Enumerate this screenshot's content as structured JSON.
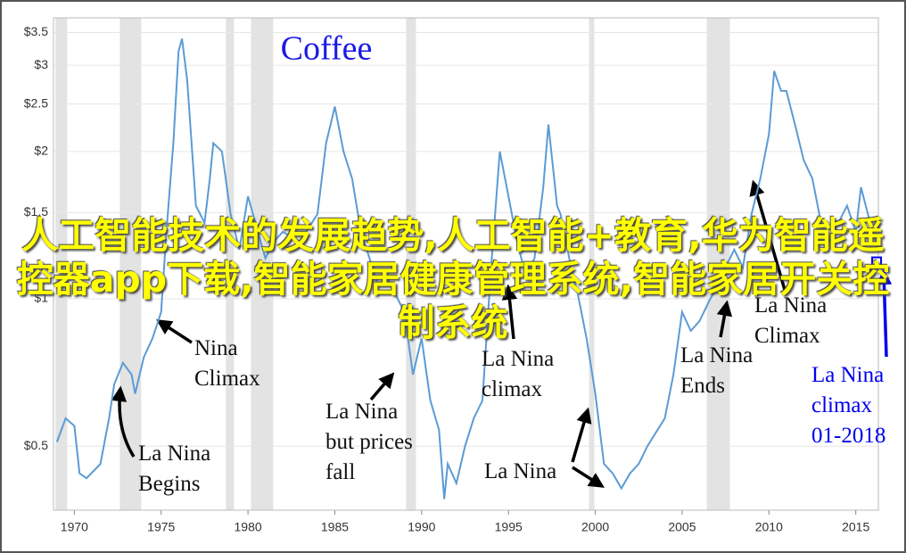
{
  "chart_data": {
    "type": "line",
    "title": "Coffee",
    "log_scale": true,
    "color": "#5b9bd5",
    "shade_color": "#e3e3e3",
    "xlim": [
      1968.8,
      2016.3
    ],
    "xticks": [
      1970,
      1975,
      1980,
      1985,
      1990,
      1995,
      2000,
      2005,
      2010,
      2015
    ],
    "ylim": [
      0.37,
      3.75
    ],
    "yticks": [
      {
        "value": 0.5,
        "label": "$0.5"
      },
      {
        "value": 1,
        "label": "$1"
      },
      {
        "value": 1.5,
        "label": "$1.5"
      },
      {
        "value": 2,
        "label": "$2"
      },
      {
        "value": 2.5,
        "label": "$2.5"
      },
      {
        "value": 3,
        "label": "$3"
      },
      {
        "value": 3.5,
        "label": "$3.5"
      }
    ],
    "shaded_periods": [
      [
        1968.92,
        1969.59
      ],
      [
        1972.62,
        1973.85
      ],
      [
        1978.73,
        1979.19
      ],
      [
        1980.17,
        1981.45
      ],
      [
        1989.11,
        1989.67
      ],
      [
        1999.64,
        1999.94
      ],
      [
        2006.42,
        2007.75
      ]
    ],
    "x": [
      1969.0,
      1969.5,
      1970.0,
      1970.3,
      1970.7,
      1971.5,
      1972.0,
      1972.3,
      1972.8,
      1973.3,
      1973.5,
      1974.0,
      1974.5,
      1975.0,
      1975.3,
      1975.7,
      1976.0,
      1976.2,
      1976.5,
      1977.0,
      1977.5,
      1977.8,
      1978.0,
      1978.5,
      1979.0,
      1979.5,
      1980.0,
      1980.5,
      1981.0,
      1981.5,
      1982.0,
      1983.0,
      1984.0,
      1984.5,
      1985.0,
      1985.5,
      1986.0,
      1986.5,
      1987.0,
      1987.5,
      1988.0,
      1988.5,
      1989.0,
      1989.5,
      1990.0,
      1990.5,
      1991.0,
      1991.3,
      1991.5,
      1992.0,
      1992.5,
      1993.0,
      1993.5,
      1994.0,
      1994.5,
      1995.0,
      1995.5,
      1996.0,
      1996.5,
      1997.0,
      1997.3,
      1997.8,
      1998.0,
      1998.5,
      1999.0,
      1999.5,
      2000.0,
      2000.5,
      2001.0,
      2001.5,
      2002.0,
      2002.5,
      2003.0,
      2004.0,
      2004.5,
      2005.0,
      2005.5,
      2006.0,
      2006.5,
      2007.0,
      2007.5,
      2008.0,
      2008.5,
      2009.0,
      2009.5,
      2010.0,
      2010.3,
      2010.7,
      2011.0,
      2011.5,
      2012.0,
      2012.5,
      2013.0,
      2013.5,
      2014.0,
      2014.5,
      2015.0,
      2015.3,
      2015.7,
      2016.0,
      2016.3
    ],
    "values": [
      0.51,
      0.57,
      0.55,
      0.44,
      0.43,
      0.46,
      0.57,
      0.67,
      0.74,
      0.7,
      0.64,
      0.76,
      0.83,
      0.94,
      1.37,
      2.08,
      3.2,
      3.4,
      2.8,
      1.55,
      1.43,
      1.76,
      2.08,
      2.0,
      1.49,
      1.26,
      1.62,
      1.4,
      1.21,
      1.31,
      1.37,
      1.31,
      1.49,
      2.08,
      2.47,
      2.0,
      1.76,
      1.37,
      1.21,
      1.06,
      1.11,
      1.02,
      0.94,
      0.7,
      0.83,
      0.62,
      0.54,
      0.39,
      0.46,
      0.42,
      0.5,
      0.57,
      0.62,
      1.16,
      2.0,
      1.62,
      1.31,
      1.11,
      1.21,
      1.69,
      2.27,
      1.55,
      1.49,
      1.21,
      1.02,
      0.83,
      0.64,
      0.46,
      0.44,
      0.41,
      0.44,
      0.46,
      0.5,
      0.57,
      0.7,
      0.94,
      0.86,
      0.9,
      0.98,
      1.06,
      1.16,
      1.26,
      1.16,
      1.49,
      1.76,
      2.17,
      2.92,
      2.66,
      2.66,
      2.27,
      1.92,
      1.76,
      1.43,
      1.31,
      1.43,
      1.55,
      1.37,
      1.69,
      1.49,
      1.37,
      1.26
    ],
    "marker": {
      "x": 2016.2,
      "value": 1.19,
      "color": "#0000ee"
    },
    "annotations": [
      {
        "lines": [
          "Nina",
          "Climax"
        ]
      },
      {
        "lines": [
          "La Nina",
          "Begins"
        ]
      },
      {
        "lines": [
          "La Nina",
          "but prices",
          "fall"
        ]
      },
      {
        "lines": [
          "La Nina",
          "climax"
        ]
      },
      {
        "lines": [
          "La Nina"
        ]
      },
      {
        "lines": [
          "La Nina",
          "Ends"
        ]
      },
      {
        "lines": [
          "La Nina",
          "Climax"
        ]
      },
      {
        "lines": [
          "La Nina",
          "climax",
          "01-2018"
        ],
        "color": "#0000ee"
      }
    ]
  },
  "overlay": {
    "text": "人工智能技术的发展趋势,人工智能+教育,华为智能遥控器app下载,智能家居健康管理系统,智能家居开关控制系统"
  }
}
